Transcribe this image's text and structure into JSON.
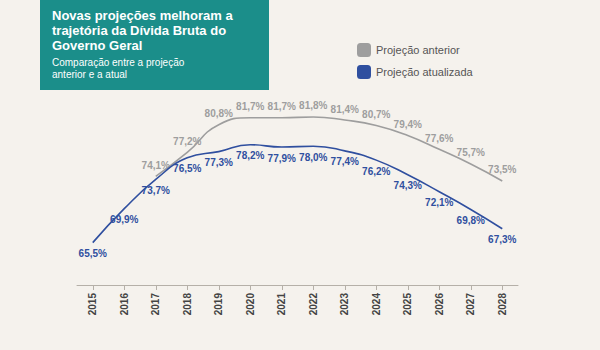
{
  "chart_data": {
    "type": "line",
    "title": "Novas projeções melhoram a trajetória da Dívida Bruta do Governo Geral",
    "subtitle": "Comparação entre a projeção anterior e a atual",
    "categories": [
      "2015",
      "2016",
      "2017",
      "2018",
      "2019",
      "2020",
      "2021",
      "2022",
      "2023",
      "2024",
      "2025",
      "2026",
      "2027",
      "2028"
    ],
    "series": [
      {
        "name": "Projeção anterior",
        "color": "#9e9e9e",
        "values": [
          null,
          null,
          74.1,
          77.2,
          80.8,
          81.7,
          81.7,
          81.8,
          81.4,
          80.7,
          79.4,
          77.6,
          75.7,
          73.5
        ],
        "value_labels": [
          null,
          null,
          "74,1%",
          "77,2%",
          "80,8%",
          "81,7%",
          "81,7%",
          "81,8%",
          "81,4%",
          "80,7%",
          "79,4%",
          "77,6%",
          "75,7%",
          "73,5%"
        ]
      },
      {
        "name": "Projeção atualizada",
        "color": "#2f4f9f",
        "values": [
          65.5,
          69.9,
          73.7,
          76.5,
          77.3,
          78.2,
          77.9,
          78.0,
          77.4,
          76.2,
          74.3,
          72.1,
          69.8,
          67.3
        ],
        "value_labels": [
          "65,5%",
          "69,9%",
          "73,7%",
          "76,5%",
          "77,3%",
          "78,2%",
          "77,9%",
          "78,0%",
          "77,4%",
          "76,2%",
          "74,3%",
          "72,1%",
          "69,8%",
          "67,3%"
        ]
      }
    ],
    "ylim": [
      60,
      84
    ],
    "legend": "upper right",
    "data_labels": true,
    "grid": false,
    "tick_labels": "x"
  }
}
